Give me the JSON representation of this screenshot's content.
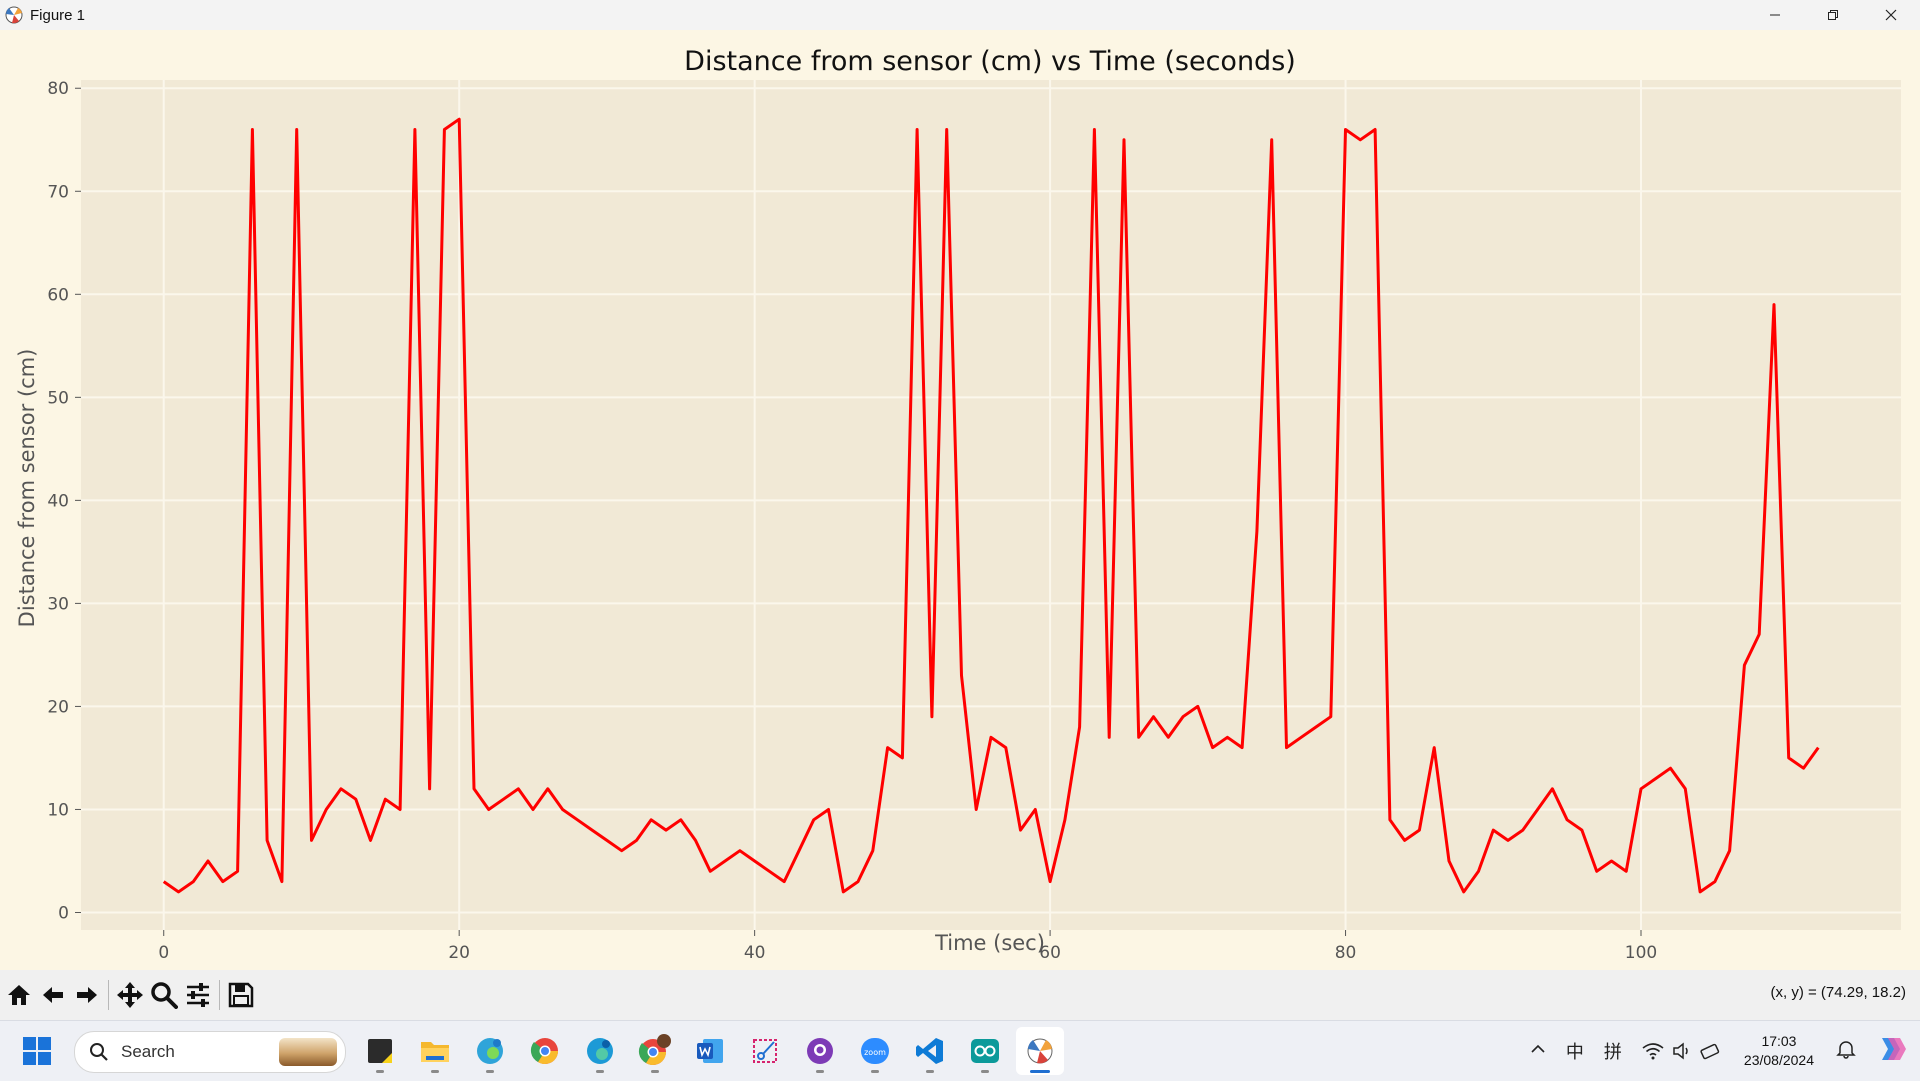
{
  "window": {
    "title": "Figure 1"
  },
  "chart_data": {
    "type": "line",
    "title": "Distance from sensor (cm) vs Time (seconds)",
    "xlabel": "Time (sec)",
    "ylabel": "Distance from sensor (cm)",
    "xlim": [
      -5.6,
      117.6
    ],
    "ylim": [
      -1.7,
      80.8
    ],
    "xticks": [
      0,
      20,
      40,
      60,
      80,
      100
    ],
    "yticks": [
      0,
      10,
      20,
      30,
      40,
      50,
      60,
      70,
      80
    ],
    "grid": true,
    "line_color": "#ff0000",
    "plot_bg": "#f1e9d6",
    "series": [
      {
        "x": [
          0,
          1,
          2,
          3,
          4,
          5,
          6,
          7,
          8,
          9,
          10,
          11,
          12,
          13,
          14,
          15,
          16,
          17,
          18,
          19,
          20,
          21,
          22,
          23,
          24,
          25,
          26,
          27,
          28,
          29,
          30,
          31,
          32,
          33,
          34,
          35,
          36,
          37,
          38,
          39,
          40,
          41,
          42,
          43,
          44,
          45,
          46,
          47,
          48,
          49,
          50,
          51,
          52,
          53,
          54,
          55,
          56,
          57,
          58,
          59,
          60,
          61,
          62,
          63,
          64,
          65,
          66,
          67,
          68,
          69,
          70,
          71,
          72,
          73,
          74,
          75,
          76,
          77,
          78,
          79,
          80,
          81,
          82,
          83,
          84,
          85,
          86,
          87,
          88,
          89,
          90,
          91,
          92,
          93,
          94,
          95,
          96,
          97,
          98,
          99,
          100,
          101,
          102,
          103,
          104,
          105,
          106,
          107,
          108,
          109,
          110,
          111,
          112
        ],
        "values": [
          3,
          2,
          3,
          5,
          3,
          4,
          76,
          7,
          3,
          76,
          7,
          10,
          12,
          11,
          7,
          11,
          10,
          76,
          12,
          76,
          77,
          12,
          10,
          11,
          12,
          10,
          12,
          10,
          9,
          8,
          7,
          6,
          7,
          9,
          8,
          9,
          7,
          4,
          5,
          6,
          5,
          4,
          3,
          6,
          9,
          10,
          2,
          3,
          6,
          16,
          15,
          76,
          19,
          76,
          23,
          10,
          17,
          16,
          8,
          10,
          3,
          9,
          18,
          76,
          17,
          75,
          17,
          19,
          17,
          19,
          20,
          16,
          17,
          16,
          37,
          75,
          16,
          17,
          18,
          19,
          76,
          75,
          76,
          9,
          7,
          8,
          16,
          5,
          2,
          4,
          8,
          7,
          8,
          10,
          12,
          9,
          8,
          4,
          5,
          4,
          12,
          13,
          14,
          12,
          2,
          3,
          6,
          24,
          27,
          59,
          15,
          14,
          16
        ]
      }
    ]
  },
  "toolbar": {
    "buttons": [
      "home-icon",
      "back-arrow-icon",
      "forward-arrow-icon",
      "pan-icon",
      "zoom-icon",
      "configure-subplots-icon",
      "save-icon"
    ],
    "coords_text": "(x, y) = (74.29, 18.2)"
  },
  "taskbar": {
    "search_placeholder": "Search",
    "apps": [
      "sticky-notes",
      "file-explorer",
      "edge-beta",
      "chrome-canary",
      "edge-dev",
      "chrome-profile",
      "word",
      "snipping-tool",
      "github-desktop",
      "zoom",
      "vscode",
      "arduino",
      "matplotlib-figure"
    ],
    "tray": {
      "ime1": "中",
      "ime2": "拼",
      "time": "17:03",
      "date": "23/08/2024"
    }
  }
}
